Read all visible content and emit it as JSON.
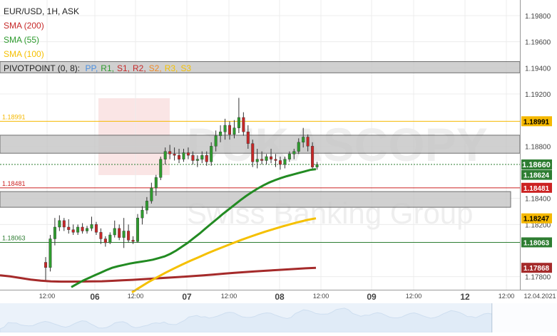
{
  "legend": {
    "instrument": "EUR/USD, 1H, ASK",
    "sma200": "SMA (200)",
    "sma55": "SMA (55)",
    "sma100": "SMA (100)",
    "pivot_prefix": "PIVOTPOINT (0, 8):",
    "pivot_items": [
      {
        "label": "PP",
        "color": "#4a8fe0"
      },
      {
        "label": "R1",
        "color": "#2e9b2e"
      },
      {
        "label": "S1",
        "color": "#c62828"
      },
      {
        "label": "R2",
        "color": "#c62828"
      },
      {
        "label": "S2",
        "color": "#f08a24"
      },
      {
        "label": "R3",
        "color": "#f5c000"
      },
      {
        "label": "S3",
        "color": "#f5c000"
      }
    ]
  },
  "watermark": {
    "brand": "DUKASCOPY",
    "tagline": "Swiss Banking Group"
  },
  "colors": {
    "up_candle": "#2e9b2e",
    "down_candle": "#c62828",
    "sma200": "#a52a2a",
    "sma55": "#228b22",
    "sma100": "#f5c000",
    "level_orange": "#f5b800",
    "level_red": "#cc2222",
    "level_green": "#2e7d32",
    "current": "#2e7d32"
  },
  "chart_data": {
    "type": "candlestick",
    "title": "EUR/USD, 1H, ASK",
    "ylim": [
      1.177,
      1.1992
    ],
    "y_ticks": [
      "1.19800",
      "1.19600",
      "1.19400",
      "1.19200",
      "1.18800",
      "1.18400",
      "1.18200",
      "1.17800"
    ],
    "x_ticks": [
      "12:00",
      "06",
      "12:00",
      "07",
      "12:00",
      "08",
      "12:00",
      "09",
      "12:00",
      "12",
      "12:00",
      "12.04.2021"
    ],
    "levels": [
      {
        "value": 1.18991,
        "label": "1.18991",
        "color": "#f5b800"
      },
      {
        "value": 1.18481,
        "label": "1.18481",
        "color": "#cc2222"
      },
      {
        "value": 1.18063,
        "label": "1.18063",
        "color": "#2e7d32"
      }
    ],
    "right_price_tags": [
      {
        "label": "1.18991",
        "value": 1.18991,
        "bg": "#f5b800",
        "fg": "#000000"
      },
      {
        "label": "1.18660",
        "value": 1.1866,
        "bg": "#2e7d32",
        "fg": "#ffffff"
      },
      {
        "label": "1.18624",
        "value": 1.18624,
        "bg": "#2e7d32",
        "fg": "#ffffff"
      },
      {
        "label": "1.18481",
        "value": 1.18481,
        "bg": "#cc2222",
        "fg": "#ffffff"
      },
      {
        "label": "1.18247",
        "value": 1.18247,
        "bg": "#f5b800",
        "fg": "#000000"
      },
      {
        "label": "1.18063",
        "value": 1.18063,
        "bg": "#2e7d32",
        "fg": "#ffffff"
      },
      {
        "label": "1.17868",
        "value": 1.17868,
        "bg": "#a52a2a",
        "fg": "#ffffff"
      }
    ],
    "current_price": 1.1866,
    "zones": [
      {
        "from": 1.19362,
        "to": 1.19448
      },
      {
        "from": 1.18746,
        "to": 1.18884
      },
      {
        "from": 1.18332,
        "to": 1.18452
      }
    ],
    "candles": [
      {
        "o": 1.1791,
        "h": 1.1795,
        "l": 1.1776,
        "c": 1.1787
      },
      {
        "o": 1.1787,
        "h": 1.1812,
        "l": 1.1784,
        "c": 1.1809
      },
      {
        "o": 1.1809,
        "h": 1.1825,
        "l": 1.1804,
        "c": 1.1818
      },
      {
        "o": 1.1818,
        "h": 1.1827,
        "l": 1.1815,
        "c": 1.1823
      },
      {
        "o": 1.1823,
        "h": 1.1825,
        "l": 1.1815,
        "c": 1.1818
      },
      {
        "o": 1.1818,
        "h": 1.1824,
        "l": 1.1813,
        "c": 1.1816
      },
      {
        "o": 1.1816,
        "h": 1.182,
        "l": 1.1812,
        "c": 1.1814
      },
      {
        "o": 1.1814,
        "h": 1.182,
        "l": 1.1812,
        "c": 1.1818
      },
      {
        "o": 1.1818,
        "h": 1.1821,
        "l": 1.1813,
        "c": 1.1815
      },
      {
        "o": 1.1815,
        "h": 1.1819,
        "l": 1.1813,
        "c": 1.1817
      },
      {
        "o": 1.1817,
        "h": 1.1826,
        "l": 1.1815,
        "c": 1.182
      },
      {
        "o": 1.182,
        "h": 1.1822,
        "l": 1.1812,
        "c": 1.1814
      },
      {
        "o": 1.1814,
        "h": 1.1817,
        "l": 1.1805,
        "c": 1.1809
      },
      {
        "o": 1.1809,
        "h": 1.1811,
        "l": 1.1803,
        "c": 1.1806
      },
      {
        "o": 1.1806,
        "h": 1.1814,
        "l": 1.1805,
        "c": 1.1812
      },
      {
        "o": 1.1812,
        "h": 1.1823,
        "l": 1.181,
        "c": 1.1817
      },
      {
        "o": 1.1817,
        "h": 1.182,
        "l": 1.1808,
        "c": 1.181
      },
      {
        "o": 1.181,
        "h": 1.1825,
        "l": 1.1802,
        "c": 1.1815
      },
      {
        "o": 1.1815,
        "h": 1.182,
        "l": 1.1806,
        "c": 1.1808
      },
      {
        "o": 1.1808,
        "h": 1.1811,
        "l": 1.1805,
        "c": 1.1807
      },
      {
        "o": 1.1807,
        "h": 1.1828,
        "l": 1.1806,
        "c": 1.1825
      },
      {
        "o": 1.1825,
        "h": 1.1834,
        "l": 1.182,
        "c": 1.1831
      },
      {
        "o": 1.1831,
        "h": 1.1841,
        "l": 1.1828,
        "c": 1.1838
      },
      {
        "o": 1.1838,
        "h": 1.1852,
        "l": 1.1836,
        "c": 1.1848
      },
      {
        "o": 1.1848,
        "h": 1.1858,
        "l": 1.1842,
        "c": 1.1856
      },
      {
        "o": 1.1856,
        "h": 1.1872,
        "l": 1.1854,
        "c": 1.187
      },
      {
        "o": 1.187,
        "h": 1.1879,
        "l": 1.1866,
        "c": 1.1876
      },
      {
        "o": 1.1876,
        "h": 1.1881,
        "l": 1.187,
        "c": 1.1874
      },
      {
        "o": 1.1874,
        "h": 1.1879,
        "l": 1.1869,
        "c": 1.1873
      },
      {
        "o": 1.1873,
        "h": 1.1878,
        "l": 1.1867,
        "c": 1.187
      },
      {
        "o": 1.187,
        "h": 1.1878,
        "l": 1.1868,
        "c": 1.1875
      },
      {
        "o": 1.1875,
        "h": 1.1879,
        "l": 1.187,
        "c": 1.1873
      },
      {
        "o": 1.1873,
        "h": 1.1876,
        "l": 1.1866,
        "c": 1.1869
      },
      {
        "o": 1.1869,
        "h": 1.1873,
        "l": 1.1864,
        "c": 1.187
      },
      {
        "o": 1.187,
        "h": 1.1876,
        "l": 1.1867,
        "c": 1.1873
      },
      {
        "o": 1.1873,
        "h": 1.1876,
        "l": 1.1865,
        "c": 1.1868
      },
      {
        "o": 1.1868,
        "h": 1.1883,
        "l": 1.1865,
        "c": 1.188
      },
      {
        "o": 1.188,
        "h": 1.1892,
        "l": 1.1876,
        "c": 1.1888
      },
      {
        "o": 1.1888,
        "h": 1.1896,
        "l": 1.1883,
        "c": 1.1891
      },
      {
        "o": 1.1891,
        "h": 1.1901,
        "l": 1.1885,
        "c": 1.1896
      },
      {
        "o": 1.1896,
        "h": 1.1899,
        "l": 1.1885,
        "c": 1.1889
      },
      {
        "o": 1.1889,
        "h": 1.19,
        "l": 1.1886,
        "c": 1.1894
      },
      {
        "o": 1.1894,
        "h": 1.1917,
        "l": 1.189,
        "c": 1.1902
      },
      {
        "o": 1.1902,
        "h": 1.1906,
        "l": 1.1888,
        "c": 1.1891
      },
      {
        "o": 1.1891,
        "h": 1.1896,
        "l": 1.1878,
        "c": 1.1882
      },
      {
        "o": 1.1882,
        "h": 1.1885,
        "l": 1.1864,
        "c": 1.1868
      },
      {
        "o": 1.1868,
        "h": 1.1878,
        "l": 1.1863,
        "c": 1.187
      },
      {
        "o": 1.187,
        "h": 1.1876,
        "l": 1.1866,
        "c": 1.1869
      },
      {
        "o": 1.1869,
        "h": 1.1874,
        "l": 1.1866,
        "c": 1.1872
      },
      {
        "o": 1.1872,
        "h": 1.1878,
        "l": 1.1867,
        "c": 1.187
      },
      {
        "o": 1.187,
        "h": 1.1874,
        "l": 1.1864,
        "c": 1.1869
      },
      {
        "o": 1.1869,
        "h": 1.1872,
        "l": 1.1862,
        "c": 1.1866
      },
      {
        "o": 1.1866,
        "h": 1.1872,
        "l": 1.1863,
        "c": 1.187
      },
      {
        "o": 1.187,
        "h": 1.1876,
        "l": 1.1868,
        "c": 1.1874
      },
      {
        "o": 1.1874,
        "h": 1.1878,
        "l": 1.187,
        "c": 1.1876
      },
      {
        "o": 1.1876,
        "h": 1.1886,
        "l": 1.1874,
        "c": 1.1883
      },
      {
        "o": 1.1883,
        "h": 1.1894,
        "l": 1.1879,
        "c": 1.1887
      },
      {
        "o": 1.1887,
        "h": 1.1889,
        "l": 1.1876,
        "c": 1.188
      },
      {
        "o": 1.188,
        "h": 1.1883,
        "l": 1.1862,
        "c": 1.1864
      },
      {
        "o": 1.1864,
        "h": 1.1868,
        "l": 1.1862,
        "c": 1.1866
      }
    ],
    "sma200": [
      1.1781,
      1.17802,
      1.1779,
      1.17778,
      1.1777,
      1.17764,
      1.17762,
      1.17762,
      1.17763,
      1.17764,
      1.17765,
      1.17768,
      1.17772,
      1.17776,
      1.1778,
      1.17785,
      1.1779,
      1.17795,
      1.178,
      1.17805,
      1.17811,
      1.17817,
      1.17823,
      1.17829,
      1.17835,
      1.1784,
      1.17845,
      1.1785,
      1.17855,
      1.1786,
      1.17864,
      1.17868
    ],
    "sma55": [
      1.1772,
      1.17745,
      1.1777,
      1.1779,
      1.1781,
      1.1783,
      1.1785,
      1.17868,
      1.1788,
      1.1789,
      1.179,
      1.17908,
      1.17915,
      1.17922,
      1.1793,
      1.17942,
      1.17955,
      1.17975,
      1.18,
      1.1803,
      1.1806,
      1.18095,
      1.1813,
      1.18168,
      1.18205,
      1.18242,
      1.1828,
      1.18315,
      1.1835,
      1.18385,
      1.18418,
      1.18448,
      1.18475,
      1.185,
      1.18522,
      1.1854,
      1.18556,
      1.1857,
      1.18582,
      1.18594,
      1.18606,
      1.18618,
      1.18624
    ],
    "sma100": [
      1.1768,
      1.1772,
      1.1776,
      1.17795,
      1.1783,
      1.17862,
      1.17893,
      1.17922,
      1.1795,
      1.17978,
      1.18005,
      1.1803,
      1.18055,
      1.1808,
      1.18103,
      1.18125,
      1.18146,
      1.18166,
      1.18185,
      1.18203,
      1.1822,
      1.18235,
      1.18247
    ]
  },
  "navigator": {
    "label": ""
  }
}
